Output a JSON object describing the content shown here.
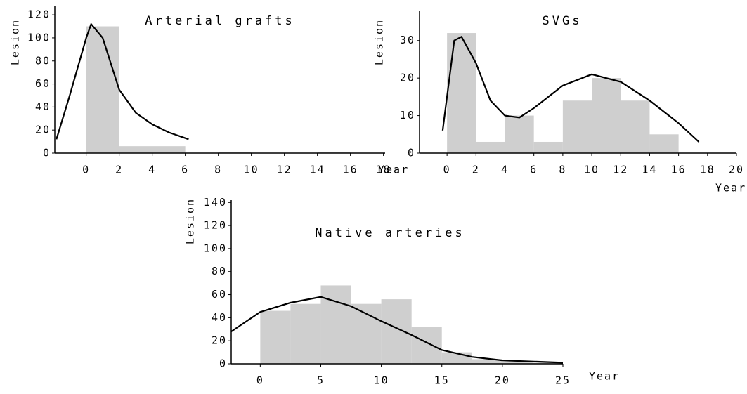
{
  "chart_data": [
    {
      "type": "histogram",
      "title": "Arterial grafts",
      "ylabel": "Lesion",
      "xlabel": "Year",
      "bins": [
        0,
        2,
        4,
        6,
        8,
        10,
        12,
        14,
        16,
        18
      ],
      "counts": [
        110,
        6,
        6,
        0,
        1,
        0,
        0,
        1,
        0
      ],
      "color": "#cfcfcf",
      "curve_x": [
        -1.8,
        -1,
        0,
        0.3,
        1,
        2,
        3,
        4,
        5,
        6.2
      ],
      "curve_y": [
        12,
        50,
        100,
        112,
        100,
        55,
        35,
        25,
        18,
        12
      ],
      "curve_color": "#000000",
      "xlim": [
        -1.9,
        18.1
      ],
      "ylim": [
        0,
        128
      ],
      "xticks": [
        0,
        2,
        4,
        6,
        8,
        10,
        12,
        14,
        16,
        18
      ],
      "yticks": [
        0,
        20,
        40,
        60,
        80,
        100,
        120
      ]
    },
    {
      "type": "histogram",
      "title": "SVGs",
      "ylabel": "Lesion",
      "xlabel": "Year",
      "bins": [
        0,
        2,
        4,
        6,
        8,
        10,
        12,
        14,
        16
      ],
      "counts": [
        32,
        3,
        10,
        3,
        14,
        20,
        14,
        5
      ],
      "color": "#cfcfcf",
      "curve_x": [
        -0.3,
        0.5,
        1,
        2,
        3,
        4,
        5,
        6,
        8,
        10,
        12,
        14,
        16,
        17.4
      ],
      "curve_y": [
        6,
        30,
        31,
        24,
        14,
        10,
        9.5,
        12,
        18,
        21,
        19,
        14,
        8,
        3
      ],
      "curve_color": "#000000",
      "xlim": [
        -1.9,
        20
      ],
      "ylim": [
        0,
        38
      ],
      "xticks": [
        0,
        2,
        4,
        6,
        8,
        10,
        12,
        14,
        16,
        18,
        20
      ],
      "yticks": [
        0,
        10,
        20,
        30
      ]
    },
    {
      "type": "histogram",
      "title": "Native arteries",
      "ylabel": "Lesion",
      "xlabel": "Year",
      "bins": [
        0,
        2.5,
        5,
        7.5,
        10,
        12.5,
        15,
        17.5,
        20,
        22.5,
        25
      ],
      "counts": [
        46,
        52,
        68,
        52,
        56,
        32,
        10,
        4,
        2,
        1
      ],
      "color": "#cfcfcf",
      "curve_x": [
        -2.4,
        0,
        2.5,
        5,
        7.5,
        10,
        12.5,
        15,
        17.5,
        20,
        25
      ],
      "curve_y": [
        28,
        45,
        53,
        58,
        50,
        37,
        25,
        12,
        6,
        3,
        1
      ],
      "curve_color": "#000000",
      "xlim": [
        -2.4,
        25
      ],
      "ylim": [
        0,
        142
      ],
      "xticks": [
        0,
        5,
        10,
        15,
        20,
        25
      ],
      "yticks": [
        0,
        20,
        40,
        60,
        80,
        100,
        120,
        140
      ]
    }
  ]
}
